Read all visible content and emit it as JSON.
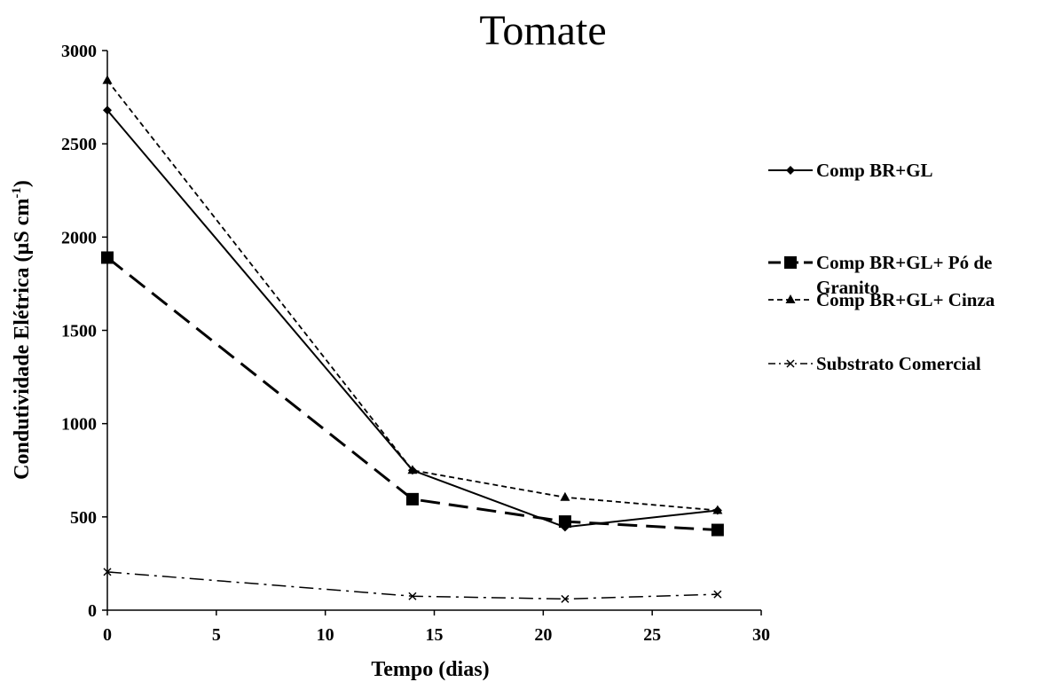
{
  "chart_data": {
    "type": "line",
    "title": "Tomate",
    "xlabel": "Tempo (dias)",
    "ylabel_main": "Condutividade Elétrica (µS cm",
    "ylabel_sup": "-1",
    "ylabel_tail": ")",
    "xlim": [
      0,
      30
    ],
    "ylim": [
      0,
      3000
    ],
    "x_ticks": [
      0,
      5,
      10,
      15,
      20,
      25,
      30
    ],
    "y_ticks": [
      0,
      500,
      1000,
      1500,
      2000,
      2500,
      3000
    ],
    "grid": false,
    "legend_position": "right",
    "x": [
      0,
      14,
      21,
      28
    ],
    "series": [
      {
        "name": "Comp BR+GL",
        "values": [
          2680,
          750,
          445,
          535
        ],
        "marker": "diamond",
        "line": "solid"
      },
      {
        "name": "Comp BR+GL+ Pó de Granito",
        "legend_lines": [
          "Comp BR+GL+ Pó de",
          "Granito"
        ],
        "values": [
          1890,
          595,
          475,
          430
        ],
        "marker": "square",
        "line": "long-dash"
      },
      {
        "name": "Comp BR+GL+ Cinza",
        "values": [
          2840,
          750,
          605,
          535
        ],
        "marker": "triangle",
        "line": "short-dash"
      },
      {
        "name": "Substrato Comercial",
        "values": [
          205,
          75,
          60,
          85
        ],
        "marker": "x",
        "line": "dash-dot"
      }
    ],
    "colors": {
      "line": "#000000",
      "background": "#ffffff"
    }
  }
}
